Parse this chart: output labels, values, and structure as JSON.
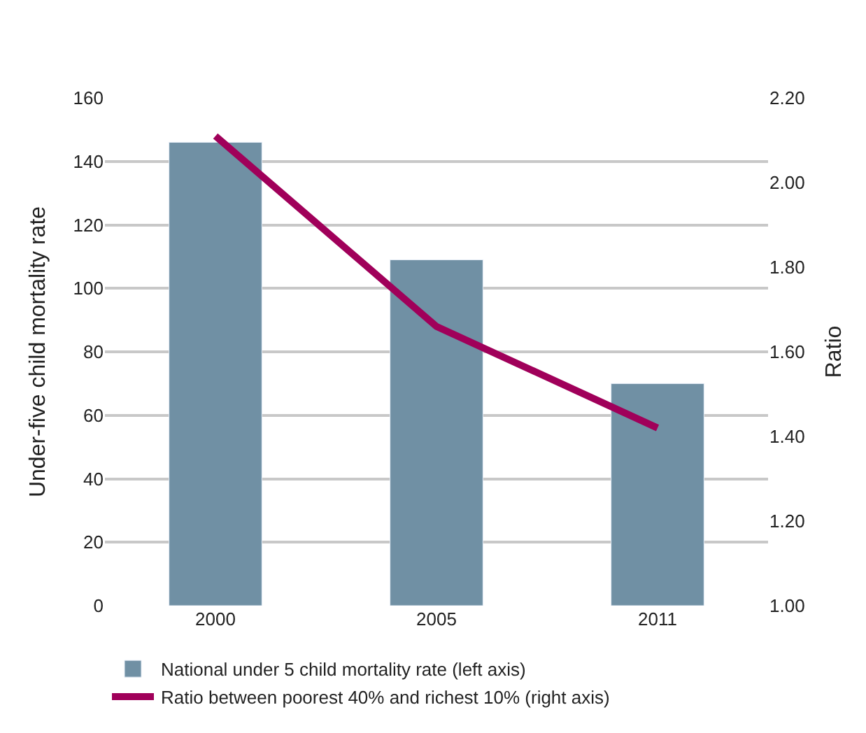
{
  "chart_data": {
    "type": "bar",
    "categories": [
      "2000",
      "2005",
      "2011"
    ],
    "ylabel": "Under-five child mortality rate",
    "y2label": "Ratio",
    "series": [
      {
        "name": "National under 5 child mortality rate (left axis)",
        "color": "#7090a4",
        "values": [
          146,
          109,
          70
        ]
      },
      {
        "name": "Ratio between poorest 40% and richest 10% (right axis)",
        "type": "line",
        "axis": "y2",
        "color": "#a0005a",
        "values": [
          2.11,
          1.66,
          1.42
        ]
      }
    ],
    "ylim": [
      0,
      160
    ],
    "yticks": [
      0,
      20,
      40,
      60,
      80,
      100,
      120,
      140,
      160
    ],
    "y2lim": [
      1.0,
      2.2
    ],
    "y2ticks": [
      {
        "value": 1.0,
        "label": "1.00"
      },
      {
        "value": 1.2,
        "label": "1.20"
      },
      {
        "value": 1.4,
        "label": "1.40"
      },
      {
        "value": 1.6,
        "label": "1.60"
      },
      {
        "value": 1.8,
        "label": "1.80"
      },
      {
        "value": 2.0,
        "label": "2.00"
      },
      {
        "value": 2.2,
        "label": "2.20"
      }
    ],
    "grid": "y",
    "legend": "bottom",
    "marker": "none"
  }
}
